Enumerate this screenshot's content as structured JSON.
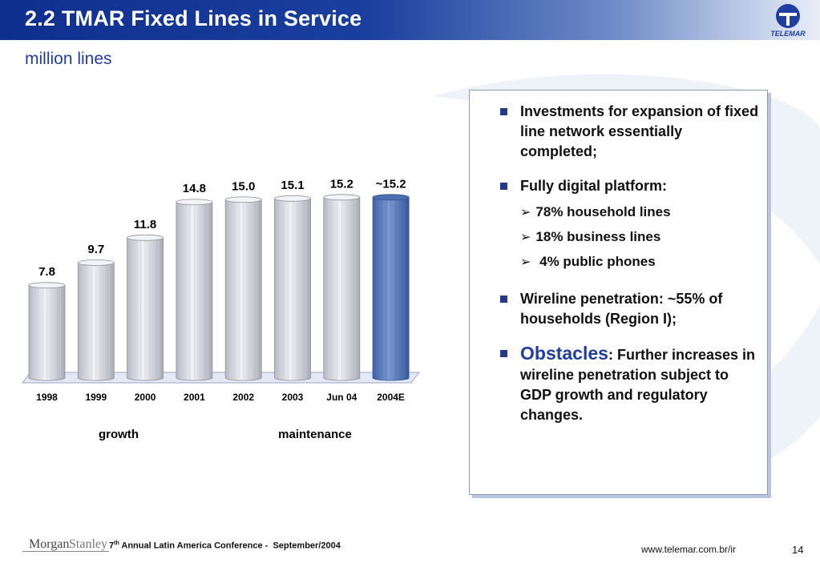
{
  "header": {
    "title": "2.2 TMAR Fixed Lines in Service",
    "logo_text": "TELEMAR"
  },
  "subtitle": "million lines",
  "chart_data": {
    "type": "bar",
    "categories": [
      "1998",
      "1999",
      "2000",
      "2001",
      "2002",
      "2003",
      "Jun 04",
      "2004E"
    ],
    "values": [
      7.8,
      9.7,
      11.8,
      14.8,
      15.0,
      15.1,
      15.2,
      15.2
    ],
    "labels": [
      "7.8",
      "9.7",
      "11.8",
      "14.8",
      "15.0",
      "15.1",
      "15.2",
      "~15.2"
    ],
    "highlight_index": 7,
    "ylim": [
      0,
      16.5
    ],
    "groups": [
      "growth",
      "maintenance"
    ],
    "colors": {
      "bar": "#e4e6ec",
      "highlight": "#5a7fbf",
      "platform": "#e3e8f4"
    }
  },
  "info_box": {
    "bullets": [
      {
        "text": "Investments for expansion of fixed line network essentially completed;"
      },
      {
        "text": "Fully digital platform:",
        "sub": [
          "78% household lines",
          "18% business lines",
          " 4% public phones"
        ]
      },
      {
        "text": "Wireline penetration: ~55% of households (Region I);"
      },
      {
        "emphasis": "Obstacles",
        "text": ": Further increases in wireline penetration subject to GDP growth and regulatory changes."
      }
    ]
  },
  "footer": {
    "brand_left": "Morgan",
    "brand_right": "Stanley",
    "conference_num": "7",
    "conference_sup": "th",
    "conference_rest": " Annual Latin America Conference -  September/2004",
    "url": "www.telemar.com.br/ir",
    "page": "14"
  }
}
